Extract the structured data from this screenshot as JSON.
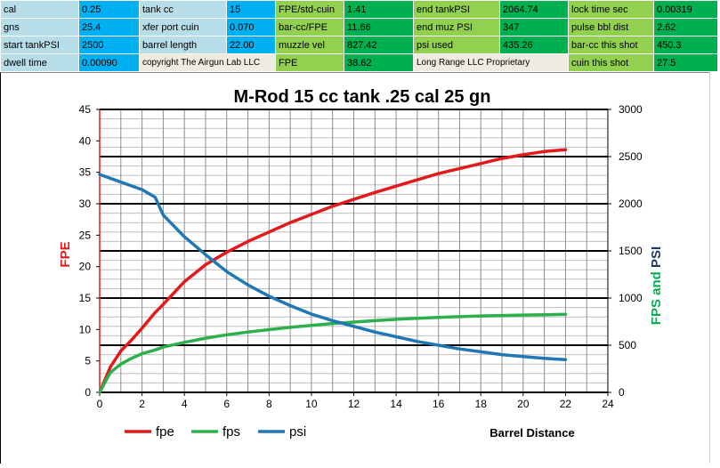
{
  "sheet": {
    "rows": [
      [
        {
          "t": "cal",
          "s": "lbl"
        },
        {
          "t": "0.25",
          "s": "val"
        },
        {
          "t": "tank cc",
          "s": "lbl"
        },
        {
          "t": "15",
          "s": "val"
        },
        {
          "t": "FPE/std-cuin",
          "s": "glt"
        },
        {
          "t": "1.41",
          "s": "gdk"
        },
        {
          "t": "end tankPSI",
          "s": "glt"
        },
        {
          "t": "2064.74",
          "s": "gdk"
        },
        {
          "t": "lock time sec",
          "s": "glt"
        },
        {
          "t": "0.00319",
          "s": "gdk"
        }
      ],
      [
        {
          "t": "gns",
          "s": "lbl"
        },
        {
          "t": "25.4",
          "s": "val"
        },
        {
          "t": "xfer port cuin",
          "s": "lbl"
        },
        {
          "t": "0.070",
          "s": "val"
        },
        {
          "t": "bar-cc/FPE",
          "s": "glt"
        },
        {
          "t": "11.66",
          "s": "gdk"
        },
        {
          "t": "end muz PSI",
          "s": "glt"
        },
        {
          "t": "347",
          "s": "gdk"
        },
        {
          "t": "pulse bbl dist",
          "s": "glt"
        },
        {
          "t": "2.62",
          "s": "gdk"
        }
      ],
      [
        {
          "t": "start tankPSI",
          "s": "lbl"
        },
        {
          "t": "2500",
          "s": "val"
        },
        {
          "t": "barrel length",
          "s": "lbl"
        },
        {
          "t": "22.00",
          "s": "val"
        },
        {
          "t": "muzzle vel",
          "s": "glt"
        },
        {
          "t": "827.42",
          "s": "gdk"
        },
        {
          "t": "psi used",
          "s": "glt"
        },
        {
          "t": "435.26",
          "s": "gdk"
        },
        {
          "t": "bar-cc this shot",
          "s": "glt"
        },
        {
          "t": "450.3",
          "s": "gdk"
        }
      ],
      [
        {
          "t": "dwell time",
          "s": "lbl"
        },
        {
          "t": "0.00090",
          "s": "val"
        },
        {
          "t": "copyright The Airgun Lab LLC",
          "s": "plainspan"
        },
        {
          "t": "FPE",
          "s": "glt"
        },
        {
          "t": "38.62",
          "s": "gdk"
        },
        {
          "t": "Long Range LLC Proprietary",
          "s": "plainspan"
        },
        {
          "t": "cuin this shot",
          "s": "glt"
        },
        {
          "t": "27.5",
          "s": "gdk"
        }
      ]
    ]
  },
  "chart_data": {
    "type": "line",
    "title": "M-Rod 15 cc tank .25 cal 25 gn",
    "xlabel": "Barrel Distance",
    "ylabel": "FPE",
    "y2label_parts": [
      {
        "text": "FPS",
        "color": "#00b050"
      },
      {
        "text": " and ",
        "color": "#00b050"
      },
      {
        "text": "PSI",
        "color": "#1f3864"
      }
    ],
    "xlim": [
      0,
      24
    ],
    "xticks": [
      "0",
      "2",
      "4",
      "6",
      "8",
      "10",
      "12",
      "14",
      "16",
      "18",
      "20",
      "22",
      "24"
    ],
    "ylim": [
      0,
      45
    ],
    "yticks": [
      "0",
      "5",
      "10",
      "15",
      "20",
      "25",
      "30",
      "35",
      "40",
      "45"
    ],
    "y2lim": [
      0,
      3000
    ],
    "y2ticks": [
      "0",
      "500",
      "1000",
      "1500",
      "2000",
      "2500",
      "3000"
    ],
    "grid": true,
    "legend_position": "bottom-left",
    "series": [
      {
        "name": "fpe",
        "axis": "left",
        "color": "#e31a1c",
        "x": [
          0,
          0.5,
          1,
          1.5,
          2,
          2.62,
          3,
          4,
          5,
          6,
          7,
          8,
          9,
          10,
          11,
          12,
          13,
          14,
          15,
          16,
          17,
          18,
          19,
          20,
          21,
          22
        ],
        "y": [
          0,
          4,
          6.6,
          8.3,
          10.2,
          12.7,
          14,
          17.6,
          20.3,
          22.3,
          24,
          25.5,
          27,
          28.3,
          29.6,
          30.7,
          31.8,
          32.8,
          33.8,
          34.8,
          35.6,
          36.4,
          37.2,
          37.8,
          38.3,
          38.6
        ]
      },
      {
        "name": "fps",
        "axis": "right",
        "color": "#2eaf4d",
        "x": [
          0,
          0.5,
          1,
          1.5,
          2,
          2.62,
          3,
          4,
          5,
          6,
          7,
          8,
          9,
          10,
          11,
          12,
          13,
          14,
          15,
          16,
          17,
          18,
          19,
          20,
          21,
          22
        ],
        "y": [
          0,
          210,
          300,
          360,
          410,
          450,
          480,
          530,
          575,
          610,
          640,
          665,
          690,
          710,
          730,
          745,
          760,
          775,
          785,
          795,
          803,
          810,
          815,
          820,
          824,
          827
        ]
      },
      {
        "name": "psi",
        "axis": "right",
        "color": "#1f77b4",
        "x": [
          0,
          0.5,
          1,
          1.5,
          2,
          2.62,
          3,
          4,
          5,
          6,
          7,
          8,
          9,
          10,
          11,
          12,
          13,
          14,
          15,
          16,
          17,
          18,
          19,
          20,
          21,
          22
        ],
        "y": [
          2310,
          2270,
          2230,
          2190,
          2150,
          2070,
          1880,
          1650,
          1460,
          1280,
          1140,
          1020,
          920,
          830,
          760,
          700,
          640,
          590,
          540,
          500,
          460,
          430,
          400,
          380,
          360,
          347
        ]
      }
    ]
  }
}
